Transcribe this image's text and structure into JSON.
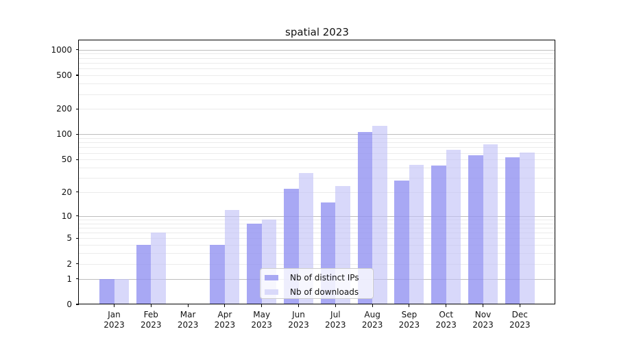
{
  "title": "spatial 2023",
  "chart_data": {
    "type": "bar",
    "title": "spatial 2023",
    "categories": [
      "Jan 2023",
      "Feb 2023",
      "Mar 2023",
      "Apr 2023",
      "May 2023",
      "Jun 2023",
      "Jul 2023",
      "Aug 2023",
      "Sep 2023",
      "Oct 2023",
      "Nov 2023",
      "Dec 2023"
    ],
    "series": [
      {
        "name": "Nb of distinct IPs",
        "values": [
          1,
          4,
          0,
          4,
          8,
          22,
          15,
          106,
          28,
          42,
          56,
          53
        ],
        "color": "#8f8ff1",
        "fill_opacity": 0.78,
        "swatch_color": "#a8a8f3"
      },
      {
        "name": "Nb of downloads",
        "values": [
          1,
          6,
          0,
          12,
          9,
          34,
          24,
          126,
          43,
          65,
          76,
          61
        ],
        "color": "#c0c0f7",
        "fill_opacity": 0.62,
        "swatch_color": "#d9d9fa"
      }
    ],
    "xlabel": "",
    "ylabel": "",
    "y_scale": "log1p",
    "ylim": [
      0,
      1290
    ],
    "y_ticks": [
      0,
      1,
      2,
      5,
      10,
      20,
      50,
      100,
      200,
      500,
      1000
    ],
    "y_major_grid_values": [
      1,
      10,
      100,
      1000
    ],
    "grid": "horizontal",
    "legend_position": "lower-center",
    "colors": {
      "grid_minor": "#ebebeb",
      "grid_major": "#bdbdbd",
      "axis": "#000000",
      "text": "#111111",
      "background": "#ffffff"
    }
  }
}
